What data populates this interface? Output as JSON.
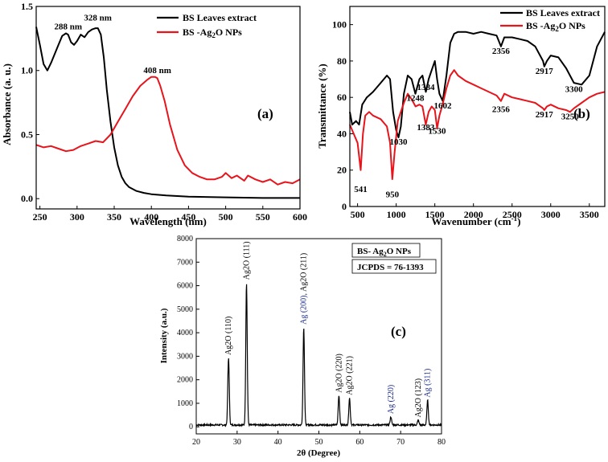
{
  "colors": {
    "black": "#000000",
    "red": "#e8141b",
    "blue": "#1a2a8c"
  },
  "chart_data": [
    {
      "type": "line",
      "panel_label": "(a)",
      "xlabel": "Wavelength (nm)",
      "ylabel": "Absorbance (a. u.)",
      "xlim": [
        245,
        600
      ],
      "ylim": [
        -0.08,
        1.5
      ],
      "xticks": [
        "250",
        "300",
        "350",
        "400",
        "450",
        "500",
        "550",
        "600"
      ],
      "xtick_values": [
        250,
        300,
        350,
        400,
        450,
        500,
        550,
        600
      ],
      "yticks": [
        "0.0",
        "0.5",
        "1.0",
        "1.5"
      ],
      "ytick_values": [
        0,
        0.5,
        1.0,
        1.5
      ],
      "legend_position": "top-right",
      "series": [
        {
          "name": "BS Leaves extract",
          "color": "#000000",
          "x": [
            245,
            250,
            255,
            260,
            265,
            270,
            275,
            280,
            285,
            288,
            292,
            296,
            300,
            305,
            310,
            315,
            320,
            325,
            328,
            332,
            336,
            340,
            345,
            350,
            355,
            360,
            365,
            370,
            380,
            390,
            400,
            420,
            450,
            500,
            550,
            600
          ],
          "y": [
            1.34,
            1.2,
            1.05,
            1.0,
            1.06,
            1.13,
            1.2,
            1.27,
            1.29,
            1.28,
            1.22,
            1.2,
            1.23,
            1.28,
            1.26,
            1.3,
            1.32,
            1.33,
            1.33,
            1.28,
            1.1,
            0.85,
            0.6,
            0.4,
            0.26,
            0.17,
            0.12,
            0.09,
            0.06,
            0.045,
            0.035,
            0.025,
            0.015,
            0.01,
            0.005,
            0.005
          ]
        },
        {
          "name": "BS -Ag2O NPs",
          "color": "#e8141b",
          "x": [
            245,
            255,
            265,
            275,
            285,
            295,
            305,
            315,
            325,
            335,
            345,
            355,
            365,
            375,
            385,
            395,
            400,
            405,
            408,
            412,
            418,
            425,
            435,
            445,
            455,
            465,
            475,
            485,
            495,
            500,
            508,
            515,
            525,
            530,
            540,
            550,
            560,
            570,
            580,
            590,
            600
          ],
          "y": [
            0.42,
            0.4,
            0.41,
            0.39,
            0.37,
            0.38,
            0.41,
            0.43,
            0.45,
            0.44,
            0.5,
            0.6,
            0.7,
            0.8,
            0.88,
            0.93,
            0.95,
            0.95,
            0.94,
            0.88,
            0.76,
            0.58,
            0.38,
            0.26,
            0.2,
            0.17,
            0.15,
            0.15,
            0.17,
            0.2,
            0.16,
            0.18,
            0.14,
            0.18,
            0.15,
            0.13,
            0.15,
            0.11,
            0.13,
            0.12,
            0.15
          ]
        }
      ],
      "annotations": [
        {
          "text": "288 nm",
          "x": 288,
          "y": 1.32
        },
        {
          "text": "328 nm",
          "x": 328,
          "y": 1.39
        },
        {
          "text": "408 nm",
          "x": 408,
          "y": 0.98
        }
      ]
    },
    {
      "type": "line",
      "panel_label": "(b)",
      "xlabel": "Wavenumber (cm",
      "xlabel_sup": "-1",
      "xlabel_end": ")",
      "ylabel": "Transmittance (%)",
      "xlim": [
        400,
        3700
      ],
      "ylim": [
        0,
        110
      ],
      "xticks": [
        "500",
        "1000",
        "1500",
        "2000",
        "2500",
        "3000",
        "3500"
      ],
      "xtick_values": [
        500,
        1000,
        1500,
        2000,
        2500,
        3000,
        3500
      ],
      "yticks": [
        "0",
        "20",
        "40",
        "60",
        "80",
        "100"
      ],
      "ytick_values": [
        0,
        20,
        40,
        60,
        80,
        100
      ],
      "legend_position": "top-right",
      "series": [
        {
          "name": "BS Leaves extract",
          "color": "#000000",
          "x": [
            400,
            430,
            480,
            520,
            560,
            620,
            700,
            800,
            880,
            920,
            960,
            1000,
            1030,
            1060,
            1100,
            1150,
            1200,
            1248,
            1300,
            1340,
            1384,
            1420,
            1460,
            1500,
            1530,
            1560,
            1602,
            1650,
            1700,
            1750,
            1800,
            1900,
            2000,
            2100,
            2200,
            2300,
            2356,
            2400,
            2500,
            2600,
            2700,
            2800,
            2900,
            2917,
            2950,
            3000,
            3100,
            3200,
            3300,
            3400,
            3500,
            3600,
            3700
          ],
          "y": [
            52,
            45,
            47,
            45,
            56,
            60,
            63,
            68,
            72,
            70,
            52,
            42,
            38,
            44,
            62,
            72,
            70,
            62,
            70,
            72,
            63,
            70,
            75,
            80,
            70,
            62,
            58,
            72,
            90,
            95,
            96,
            96,
            95,
            96,
            95,
            94,
            88,
            93,
            93,
            92,
            91,
            88,
            80,
            77,
            80,
            83,
            82,
            76,
            68,
            67,
            72,
            88,
            96
          ]
        },
        {
          "name": "BS -Ag2O NPs",
          "color": "#e8141b",
          "x": [
            400,
            450,
            500,
            541,
            570,
            600,
            650,
            700,
            800,
            880,
            920,
            950,
            980,
            1020,
            1100,
            1150,
            1200,
            1250,
            1300,
            1340,
            1383,
            1420,
            1460,
            1500,
            1530,
            1560,
            1600,
            1650,
            1700,
            1750,
            1800,
            1900,
            2000,
            2100,
            2200,
            2300,
            2356,
            2400,
            2500,
            2600,
            2700,
            2800,
            2900,
            2917,
            2950,
            3000,
            3100,
            3200,
            3250,
            3300,
            3400,
            3500,
            3600,
            3700
          ],
          "y": [
            45,
            40,
            35,
            20,
            40,
            50,
            52,
            50,
            48,
            44,
            35,
            15,
            30,
            47,
            57,
            62,
            59,
            55,
            56,
            55,
            45,
            52,
            55,
            53,
            43,
            50,
            56,
            65,
            72,
            75,
            72,
            69,
            67,
            65,
            63,
            61,
            58,
            62,
            60,
            59,
            58,
            57,
            54,
            53,
            55,
            56,
            54,
            53,
            52,
            54,
            57,
            60,
            62,
            63
          ]
        }
      ],
      "annotations": [
        {
          "text": "541",
          "x": 541,
          "y": 8
        },
        {
          "text": "950",
          "x": 950,
          "y": 5
        },
        {
          "text": "1030",
          "x": 1030,
          "y": 34
        },
        {
          "text": "1248",
          "x": 1248,
          "y": 58
        },
        {
          "text": "1384",
          "x": 1384,
          "y": 64
        },
        {
          "text": "1383",
          "x": 1383,
          "y": 42
        },
        {
          "text": "1530",
          "x": 1530,
          "y": 40
        },
        {
          "text": "1602",
          "x": 1602,
          "y": 54
        },
        {
          "text": "2356",
          "x": 2356,
          "y": 84
        },
        {
          "text": "2356",
          "x": 2356,
          "y": 52
        },
        {
          "text": "2917",
          "x": 2917,
          "y": 73
        },
        {
          "text": "2917",
          "x": 2917,
          "y": 49
        },
        {
          "text": "3300",
          "x": 3300,
          "y": 63
        },
        {
          "text": "3250",
          "x": 3250,
          "y": 48
        }
      ]
    },
    {
      "type": "line",
      "panel_label": "(c)",
      "xlabel": "2θ (Degree)",
      "ylabel": "Intensity (a.u.)",
      "xlim": [
        20,
        80
      ],
      "ylim": [
        -300,
        8000
      ],
      "xticks": [
        "20",
        "30",
        "40",
        "50",
        "60",
        "70",
        "80"
      ],
      "xtick_values": [
        20,
        30,
        40,
        50,
        60,
        70,
        80
      ],
      "yticks": [
        "0",
        "1000",
        "2000",
        "3000",
        "4000",
        "5000",
        "6000",
        "7000",
        "8000"
      ],
      "ytick_values": [
        0,
        1000,
        2000,
        3000,
        4000,
        5000,
        6000,
        7000,
        8000
      ],
      "series": [
        {
          "name": "BS- Ag2O NPs",
          "color": "#000000",
          "peaks": [
            {
              "pos": 27.9,
              "height": 2850,
              "width": 0.25
            },
            {
              "pos": 32.3,
              "height": 6050,
              "width": 0.25
            },
            {
              "pos": 46.3,
              "height": 4150,
              "width": 0.25
            },
            {
              "pos": 54.9,
              "height": 1250,
              "width": 0.25
            },
            {
              "pos": 57.5,
              "height": 1150,
              "width": 0.25
            },
            {
              "pos": 67.6,
              "height": 350,
              "width": 0.25
            },
            {
              "pos": 74.3,
              "height": 200,
              "width": 0.25
            },
            {
              "pos": 76.6,
              "height": 1050,
              "width": 0.25
            }
          ],
          "baseline": 80
        }
      ],
      "legend_box": {
        "title_prefix": "BS- Ag",
        "title_sub": "2",
        "title_suffix": "O NPs",
        "jcpds": "JCPDS = 76-1393"
      },
      "annotations": [
        {
          "text": "Ag2O (110)",
          "x": 27.9,
          "y": 3050,
          "color": "black"
        },
        {
          "text": "Ag2O (111)",
          "x": 32.3,
          "y": 6250,
          "color": "black"
        },
        {
          "text": "Ag (200), Ag2O (211)",
          "x": 46.3,
          "y": 4350,
          "color": "mixed"
        },
        {
          "text": "Ag2O (220)",
          "x": 54.9,
          "y": 1450,
          "color": "black"
        },
        {
          "text": "Ag2O (221)",
          "x": 57.5,
          "y": 1350,
          "color": "black"
        },
        {
          "text": "Ag (220)",
          "x": 67.6,
          "y": 550,
          "color": "blue"
        },
        {
          "text": "Ag2O (123)",
          "x": 74.3,
          "y": 400,
          "color": "black"
        },
        {
          "text": "Ag (311)",
          "x": 76.6,
          "y": 1250,
          "color": "blue"
        }
      ]
    }
  ],
  "legends": {
    "a": [
      {
        "label": "BS Leaves extract"
      },
      {
        "label_prefix": "BS -Ag",
        "label_sub": "2",
        "label_suffix": "O NPs"
      }
    ],
    "b": [
      {
        "label": "BS Leaves extract"
      },
      {
        "label_prefix": "BS -Ag",
        "label_sub": "2",
        "label_suffix": "O NPs"
      }
    ]
  }
}
